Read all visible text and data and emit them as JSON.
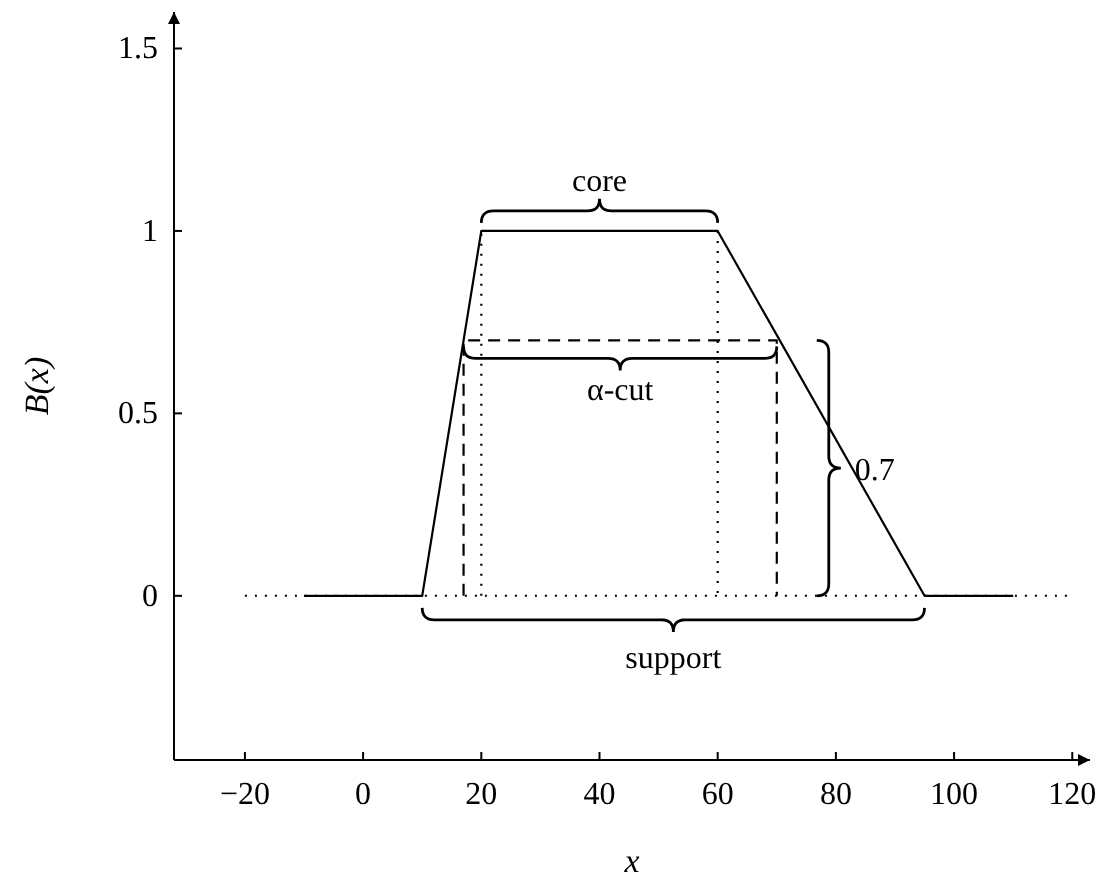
{
  "chart_data": {
    "type": "line",
    "xlabel": "x",
    "ylabel": "B(x)",
    "xlim": [
      -32,
      123
    ],
    "ylim": [
      -0.45,
      1.6
    ],
    "xticks": [
      -20,
      0,
      20,
      40,
      60,
      80,
      100,
      120
    ],
    "yticks": [
      0,
      0.5,
      1,
      1.5
    ],
    "grid": false,
    "marker": "none",
    "series": [
      {
        "color": "#000000",
        "x": [
          -10,
          10,
          20,
          60,
          95,
          110
        ],
        "values": [
          0,
          0,
          1,
          1,
          0,
          0
        ],
        "line_style": "solid"
      },
      {
        "color": "#000000",
        "x": [
          17,
          17,
          70,
          70
        ],
        "values": [
          0,
          0.7,
          0.7,
          0
        ],
        "line_style": "dashed"
      },
      {
        "color": "#000000",
        "x": [
          20,
          20,
          40,
          60,
          60
        ],
        "values": [
          0,
          1,
          null,
          1,
          0
        ],
        "line_style": "dotted"
      }
    ],
    "ref_lines": [
      {
        "axis": "y",
        "value": 0,
        "line_style": "dotted",
        "color": "#000000"
      }
    ],
    "annotations": [
      {
        "text": "core",
        "x": 40,
        "y": 1
      },
      {
        "text": "α-cut",
        "x": 43.5,
        "y": 0.7
      },
      {
        "text": "support",
        "x": 52.5,
        "y": 0
      },
      "0.7"
    ]
  }
}
